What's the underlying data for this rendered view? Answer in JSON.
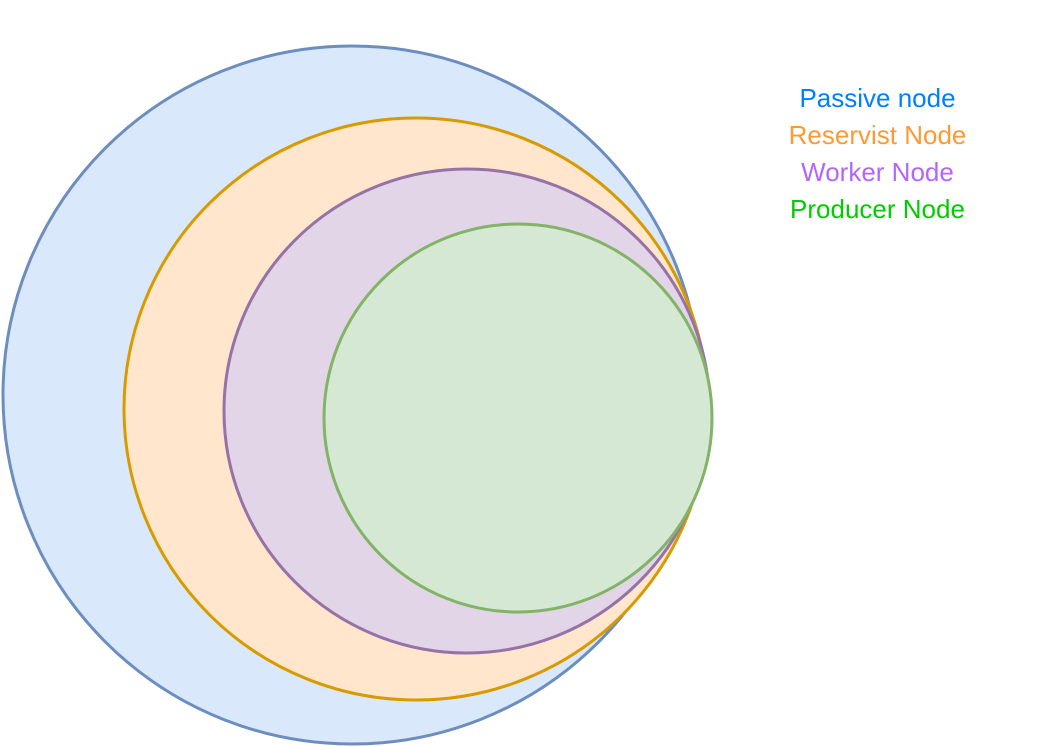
{
  "layers": [
    {
      "key": "passive",
      "label": "Passive node",
      "text_color": "#007FFF",
      "fill": "#DAE8FC",
      "stroke": "#6C8EBF"
    },
    {
      "key": "reservist",
      "label": "Reservist Node",
      "text_color": "#FF9933",
      "fill": "#FFE6CC",
      "stroke": "#D79B00"
    },
    {
      "key": "worker",
      "label": "Worker Node",
      "text_color": "#B266FF",
      "fill": "#E1D5E7",
      "stroke": "#9673A6"
    },
    {
      "key": "producer",
      "label": "Producer Node",
      "text_color": "#00CC00",
      "fill": "#D5E8D4",
      "stroke": "#82B366"
    }
  ]
}
